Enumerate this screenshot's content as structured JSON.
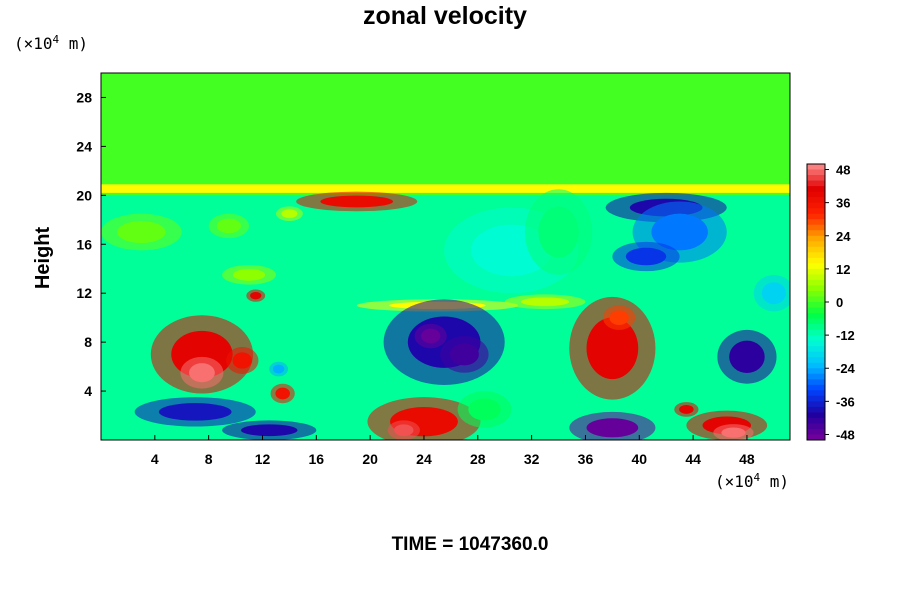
{
  "chart_data": {
    "type": "heatmap",
    "title": "zonal velocity",
    "ylabel": "Height",
    "xlabel": "",
    "x_unit": {
      "prefix": "(×10",
      "exponent": "4",
      "suffix": " m)"
    },
    "y_unit": {
      "prefix": "(×10",
      "exponent": "4",
      "suffix": " m)"
    },
    "xlim": [
      0,
      51.2
    ],
    "ylim": [
      0,
      30
    ],
    "x_ticks": [
      4,
      8,
      12,
      16,
      20,
      24,
      28,
      32,
      36,
      40,
      44,
      48
    ],
    "y_ticks": [
      4,
      8,
      12,
      16,
      20,
      24,
      28
    ],
    "colorbar": {
      "min": -50,
      "max": 50,
      "ticks": [
        48,
        36,
        24,
        12,
        0,
        -12,
        -24,
        -36,
        -48
      ],
      "stops": [
        "#7a009a",
        "#2000a0",
        "#0044ff",
        "#00c0ff",
        "#00ffd0",
        "#00ff44",
        "#88ff00",
        "#ffff00",
        "#ffaa00",
        "#ff2200",
        "#e00000",
        "#ff9090"
      ]
    },
    "field": {
      "background": 0,
      "layers": [
        {
          "kind": "band",
          "y0": 0,
          "y1": 20,
          "value": -10
        },
        {
          "kind": "band",
          "y0": 20.2,
          "y1": 20.9,
          "value": 14
        }
      ],
      "features": [
        {
          "x": 7.5,
          "y": 7,
          "rx": 3.8,
          "ry": 3.2,
          "value": 40
        },
        {
          "x": 7.5,
          "y": 5.5,
          "rx": 1.6,
          "ry": 1.3,
          "value": 48
        },
        {
          "x": 10.5,
          "y": 6.5,
          "rx": 1.2,
          "ry": 1.1,
          "value": 36
        },
        {
          "x": 11.5,
          "y": 11.8,
          "rx": 0.7,
          "ry": 0.5,
          "value": 40
        },
        {
          "x": 13.5,
          "y": 3.8,
          "rx": 0.9,
          "ry": 0.8,
          "value": 36
        },
        {
          "x": 13.2,
          "y": 5.8,
          "rx": 0.7,
          "ry": 0.6,
          "value": -24
        },
        {
          "x": 19,
          "y": 19.5,
          "rx": 4.5,
          "ry": 0.8,
          "value": 38
        },
        {
          "x": 25,
          "y": 11,
          "rx": 6,
          "ry": 0.5,
          "value": 14
        },
        {
          "x": 25.5,
          "y": 8,
          "rx": 4.5,
          "ry": 3.5,
          "value": -40
        },
        {
          "x": 24.5,
          "y": 8.5,
          "rx": 1.2,
          "ry": 1.0,
          "value": -48
        },
        {
          "x": 27,
          "y": 7,
          "rx": 1.8,
          "ry": 1.5,
          "value": -44
        },
        {
          "x": 24,
          "y": 1.5,
          "rx": 4.2,
          "ry": 2.0,
          "value": 38
        },
        {
          "x": 22.5,
          "y": 0.8,
          "rx": 1.2,
          "ry": 0.8,
          "value": 46
        },
        {
          "x": 38,
          "y": 7.5,
          "rx": 3.2,
          "ry": 4.2,
          "value": 40
        },
        {
          "x": 38.5,
          "y": 10,
          "rx": 1.2,
          "ry": 1.0,
          "value": 30
        },
        {
          "x": 38,
          "y": 1.0,
          "rx": 3.2,
          "ry": 1.3,
          "value": -48
        },
        {
          "x": 42,
          "y": 19,
          "rx": 4.5,
          "ry": 1.2,
          "value": -40
        },
        {
          "x": 43,
          "y": 17,
          "rx": 3.5,
          "ry": 2.5,
          "value": -28
        },
        {
          "x": 40.5,
          "y": 15,
          "rx": 2.5,
          "ry": 1.2,
          "value": -34
        },
        {
          "x": 48,
          "y": 6.8,
          "rx": 2.2,
          "ry": 2.2,
          "value": -42
        },
        {
          "x": 46.5,
          "y": 1.2,
          "rx": 3.0,
          "ry": 1.2,
          "value": 40
        },
        {
          "x": 47,
          "y": 0.6,
          "rx": 1.5,
          "ry": 0.7,
          "value": 48
        },
        {
          "x": 43.5,
          "y": 2.5,
          "rx": 0.9,
          "ry": 0.6,
          "value": 40
        },
        {
          "x": 7,
          "y": 2.3,
          "rx": 4.5,
          "ry": 1.2,
          "value": -38
        },
        {
          "x": 12.5,
          "y": 0.8,
          "rx": 3.5,
          "ry": 0.8,
          "value": -40
        },
        {
          "x": 30.5,
          "y": 15.5,
          "rx": 5,
          "ry": 3.5,
          "value": -14
        },
        {
          "x": 3,
          "y": 17,
          "rx": 3,
          "ry": 1.5,
          "value": 2
        },
        {
          "x": 9.5,
          "y": 17.5,
          "rx": 1.5,
          "ry": 1.0,
          "value": 2
        },
        {
          "x": 14,
          "y": 18.5,
          "rx": 1.0,
          "ry": 0.6,
          "value": 8
        },
        {
          "x": 11,
          "y": 13.5,
          "rx": 2.0,
          "ry": 0.8,
          "value": 5
        },
        {
          "x": 34,
          "y": 17,
          "rx": 2.5,
          "ry": 3.5,
          "value": -8
        },
        {
          "x": 28.5,
          "y": 2.5,
          "rx": 2,
          "ry": 1.5,
          "value": -6
        },
        {
          "x": 33,
          "y": 11.3,
          "rx": 3,
          "ry": 0.6,
          "value": 8
        },
        {
          "x": 50,
          "y": 12,
          "rx": 1.5,
          "ry": 1.5,
          "value": -20
        }
      ]
    }
  },
  "footer": {
    "time_label": "TIME = 1047360.0"
  }
}
